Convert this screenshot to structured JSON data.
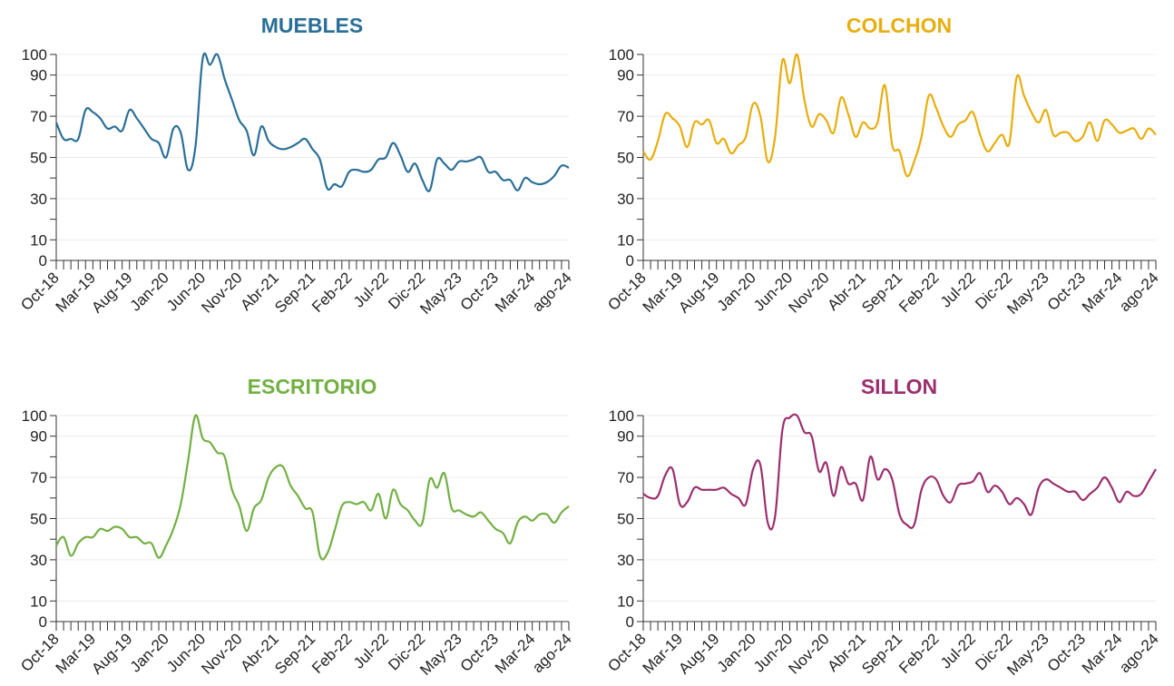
{
  "chart_data": [
    {
      "type": "line",
      "title": "MUEBLES",
      "color": "#2a6f97",
      "categories": [
        "Oct-18",
        null,
        null,
        null,
        null,
        "Mar-19",
        null,
        null,
        null,
        null,
        "Aug-19",
        null,
        null,
        null,
        null,
        "Jan-20",
        null,
        null,
        null,
        null,
        "Jun-20",
        null,
        null,
        null,
        null,
        "Nov-20",
        null,
        null,
        null,
        null,
        "Abr-21",
        null,
        null,
        null,
        null,
        "Sep-21",
        null,
        null,
        null,
        null,
        "Feb-22",
        null,
        null,
        null,
        null,
        "Jul-22",
        null,
        null,
        null,
        null,
        "Dic-22",
        null,
        null,
        null,
        null,
        "May-23",
        null,
        null,
        null,
        null,
        "Oct-23",
        null,
        null,
        null,
        null,
        "Mar-24",
        null,
        null,
        null,
        null,
        "ago-24"
      ],
      "values": [
        67,
        59,
        59,
        59,
        73,
        72,
        69,
        64,
        65,
        63,
        73,
        69,
        64,
        59,
        57,
        50,
        64,
        62,
        44,
        55,
        98,
        95,
        100,
        88,
        78,
        68,
        63,
        51,
        65,
        58,
        55,
        54,
        55,
        57,
        59,
        54,
        49,
        35,
        37,
        36,
        43,
        44,
        43,
        44,
        49,
        50,
        57,
        51,
        43,
        47,
        39,
        34,
        49,
        47,
        44,
        48,
        48,
        49,
        50,
        43,
        43,
        39,
        39,
        34,
        40,
        38,
        37,
        38,
        41,
        46,
        45
      ],
      "ylim": [
        0,
        100
      ],
      "yticks": [
        0,
        10,
        30,
        50,
        70,
        90,
        100
      ],
      "yminor_ticks": [
        20,
        40,
        60,
        80
      ],
      "grid": true
    },
    {
      "type": "line",
      "title": "COLCHON",
      "color": "#e8ad0e",
      "categories": [
        "Oct-18",
        null,
        null,
        null,
        null,
        "Mar-19",
        null,
        null,
        null,
        null,
        "Aug-19",
        null,
        null,
        null,
        null,
        "Jan-20",
        null,
        null,
        null,
        null,
        "Jun-20",
        null,
        null,
        null,
        null,
        "Nov-20",
        null,
        null,
        null,
        null,
        "Abr-21",
        null,
        null,
        null,
        null,
        "Sep-21",
        null,
        null,
        null,
        null,
        "Feb-22",
        null,
        null,
        null,
        null,
        "Jul-22",
        null,
        null,
        null,
        null,
        "Dic-22",
        null,
        null,
        null,
        null,
        "May-23",
        null,
        null,
        null,
        null,
        "Oct-23",
        null,
        null,
        null,
        null,
        "Mar-24",
        null,
        null,
        null,
        null,
        "ago-24"
      ],
      "values": [
        53,
        49,
        58,
        71,
        69,
        65,
        55,
        67,
        66,
        68,
        57,
        59,
        52,
        56,
        60,
        76,
        70,
        48,
        60,
        97,
        86,
        100,
        78,
        65,
        71,
        68,
        62,
        79,
        71,
        60,
        67,
        64,
        67,
        85,
        56,
        53,
        41,
        48,
        60,
        80,
        74,
        65,
        60,
        66,
        68,
        72,
        61,
        53,
        57,
        61,
        57,
        89,
        80,
        72,
        67,
        73,
        61,
        62,
        62,
        58,
        60,
        67,
        58,
        68,
        66,
        62,
        63,
        64,
        59,
        64,
        61
      ],
      "ylim": [
        0,
        100
      ],
      "yticks": [
        0,
        10,
        30,
        50,
        70,
        90,
        100
      ],
      "yminor_ticks": [
        20,
        40,
        60,
        80
      ],
      "grid": true
    },
    {
      "type": "line",
      "title": "ESCRITORIO",
      "color": "#72b043",
      "categories": [
        "Oct-18",
        null,
        null,
        null,
        null,
        "Mar-19",
        null,
        null,
        null,
        null,
        "Aug-19",
        null,
        null,
        null,
        null,
        "Jan-20",
        null,
        null,
        null,
        null,
        "Jun-20",
        null,
        null,
        null,
        null,
        "Nov-20",
        null,
        null,
        null,
        null,
        "Abr-21",
        null,
        null,
        null,
        null,
        "Sep-21",
        null,
        null,
        null,
        null,
        "Feb-22",
        null,
        null,
        null,
        null,
        "Jul-22",
        null,
        null,
        null,
        null,
        "Dic-22",
        null,
        null,
        null,
        null,
        "May-23",
        null,
        null,
        null,
        null,
        "Oct-23",
        null,
        null,
        null,
        null,
        "Mar-24",
        null,
        null,
        null,
        null,
        "ago-24"
      ],
      "values": [
        37,
        41,
        32,
        38,
        41,
        41,
        45,
        44,
        46,
        45,
        41,
        41,
        38,
        38,
        31,
        37,
        45,
        57,
        78,
        100,
        89,
        87,
        82,
        80,
        64,
        56,
        44,
        55,
        59,
        70,
        75,
        75,
        66,
        61,
        55,
        53,
        32,
        33,
        44,
        56,
        58,
        57,
        58,
        54,
        62,
        50,
        64,
        57,
        54,
        49,
        48,
        69,
        65,
        72,
        55,
        54,
        52,
        51,
        53,
        49,
        45,
        43,
        38,
        48,
        51,
        49,
        52,
        52,
        48,
        53,
        56
      ],
      "ylim": [
        0,
        100
      ],
      "yticks": [
        0,
        10,
        30,
        50,
        70,
        90,
        100
      ],
      "yminor_ticks": [
        20,
        40,
        60,
        80
      ],
      "grid": true
    },
    {
      "type": "line",
      "title": "SILLON",
      "color": "#9b2f6e",
      "categories": [
        "Oct-18",
        null,
        null,
        null,
        null,
        "Mar-19",
        null,
        null,
        null,
        null,
        "Aug-19",
        null,
        null,
        null,
        null,
        "Jan-20",
        null,
        null,
        null,
        null,
        "Jun-20",
        null,
        null,
        null,
        null,
        "Nov-20",
        null,
        null,
        null,
        null,
        "Abr-21",
        null,
        null,
        null,
        null,
        "Sep-21",
        null,
        null,
        null,
        null,
        "Feb-22",
        null,
        null,
        null,
        null,
        "Jul-22",
        null,
        null,
        null,
        null,
        "Dic-22",
        null,
        null,
        null,
        null,
        "May-23",
        null,
        null,
        null,
        null,
        "Oct-23",
        null,
        null,
        null,
        null,
        "Mar-24",
        null,
        null,
        null,
        null,
        "ago-24"
      ],
      "values": [
        62,
        60,
        61,
        71,
        74,
        57,
        58,
        65,
        64,
        64,
        64,
        65,
        62,
        60,
        57,
        74,
        76,
        48,
        51,
        93,
        99,
        100,
        92,
        90,
        73,
        77,
        61,
        75,
        67,
        67,
        59,
        80,
        69,
        74,
        69,
        52,
        47,
        47,
        64,
        70,
        69,
        61,
        58,
        66,
        67,
        68,
        72,
        63,
        66,
        63,
        57,
        60,
        57,
        52,
        65,
        69,
        67,
        65,
        63,
        63,
        59,
        62,
        65,
        70,
        65,
        58,
        63,
        61,
        62,
        68,
        74
      ],
      "ylim": [
        0,
        100
      ],
      "yticks": [
        0,
        10,
        30,
        50,
        70,
        90,
        100
      ],
      "yminor_ticks": [
        20,
        40,
        60,
        80
      ],
      "grid": true
    }
  ]
}
